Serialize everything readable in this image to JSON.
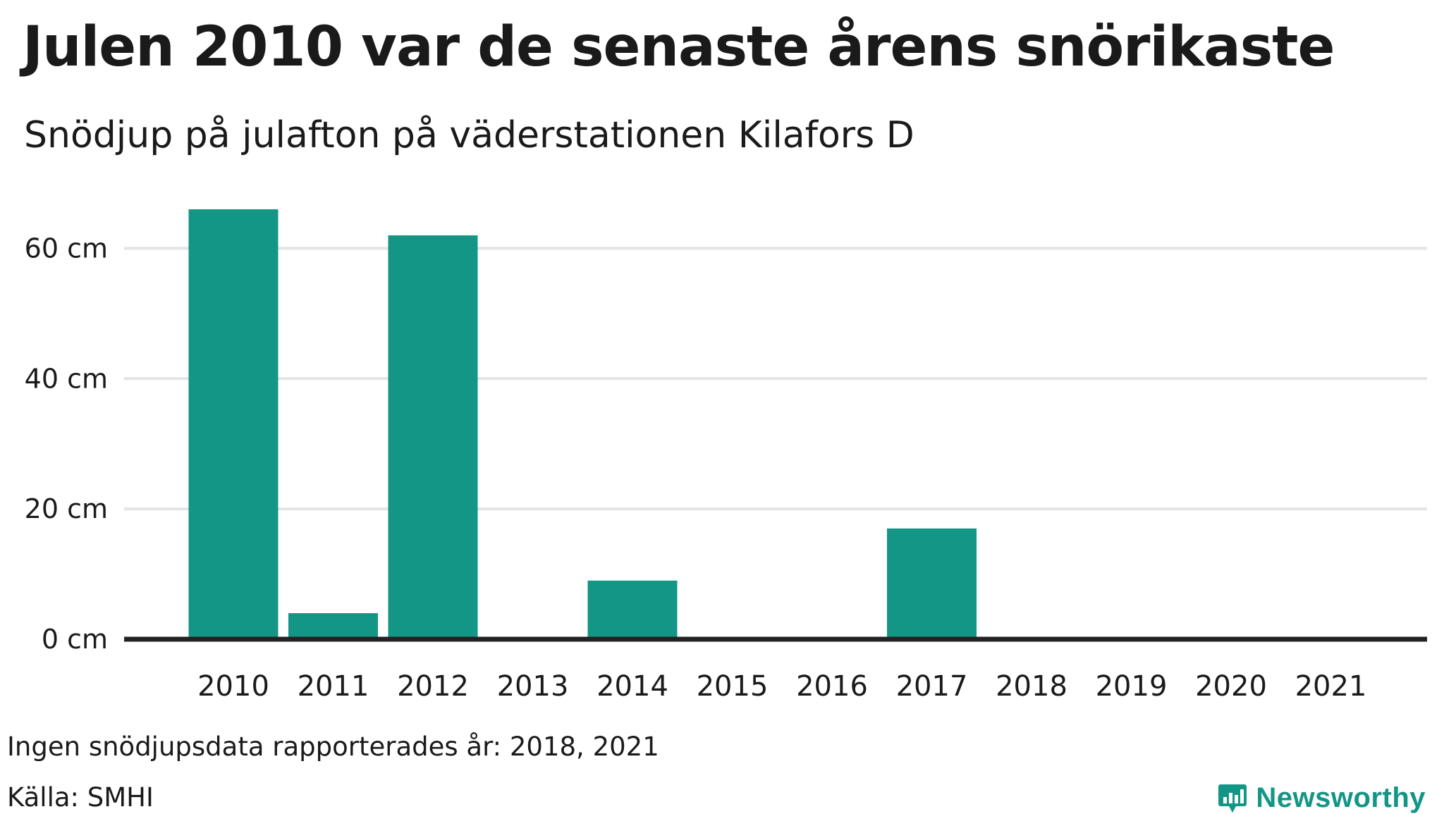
{
  "title": "Julen 2010 var de senaste årens snörikaste",
  "subtitle": "Snödjup på julafton på väderstationen Kilafors D",
  "footnote": "Ingen snödjupsdata rapporterades år: 2018, 2021",
  "source": "Källa: SMHI",
  "brand": {
    "name": "Newsworthy",
    "color": "#149686"
  },
  "colors": {
    "bar": "#149686",
    "grid": "#e4e4e4",
    "baseline": "#222222"
  },
  "chart_data": {
    "type": "bar",
    "title": "Julen 2010 var de senaste årens snörikaste",
    "subtitle": "Snödjup på julafton på väderstationen Kilafors D",
    "categories": [
      "2010",
      "2011",
      "2012",
      "2013",
      "2014",
      "2015",
      "2016",
      "2017",
      "2018",
      "2019",
      "2020",
      "2021"
    ],
    "values": [
      66,
      4,
      62,
      0,
      9,
      0,
      0,
      17,
      null,
      0,
      0,
      null
    ],
    "unit": "cm",
    "ylim": [
      0,
      70
    ],
    "yticks": [
      0,
      20,
      40,
      60
    ],
    "ytick_labels": [
      "0 cm",
      "20 cm",
      "40 cm",
      "60 cm"
    ],
    "grid": true,
    "legend": "none"
  }
}
